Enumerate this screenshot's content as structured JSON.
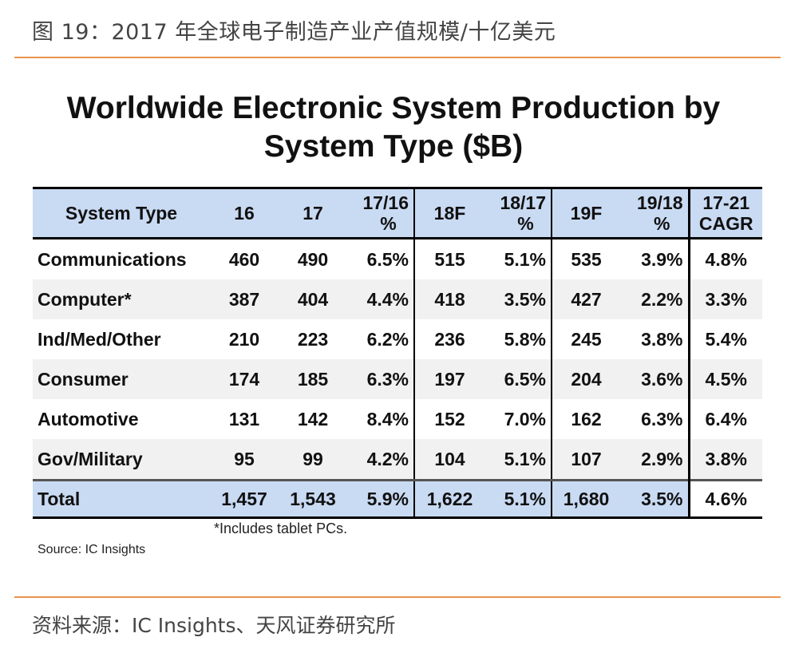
{
  "figure_caption": "图 19：2017 年全球电子制造产业产值规模/十亿美元",
  "title": {
    "line1": "Worldwide Electronic System Production by",
    "line2": "System Type ($B)"
  },
  "table": {
    "headers": {
      "system_type": "System Type",
      "y16": "16",
      "y17": "17",
      "g1716": [
        "17/16",
        "%"
      ],
      "y18": "18F",
      "g1817": [
        "18/17",
        "%"
      ],
      "y19": "19F",
      "g1918": [
        "19/18",
        "%"
      ],
      "cagr": [
        "17-21",
        "CAGR"
      ]
    },
    "rows": [
      {
        "type": "Communications",
        "y16": "460",
        "y17": "490",
        "g1716": "6.5%",
        "y18": "515",
        "g1817": "5.1%",
        "y19": "535",
        "g1918": "3.9%",
        "cagr": "4.8%"
      },
      {
        "type": "Computer*",
        "y16": "387",
        "y17": "404",
        "g1716": "4.4%",
        "y18": "418",
        "g1817": "3.5%",
        "y19": "427",
        "g1918": "2.2%",
        "cagr": "3.3%"
      },
      {
        "type": "Ind/Med/Other",
        "y16": "210",
        "y17": "223",
        "g1716": "6.2%",
        "y18": "236",
        "g1817": "5.8%",
        "y19": "245",
        "g1918": "3.8%",
        "cagr": "5.4%"
      },
      {
        "type": "Consumer",
        "y16": "174",
        "y17": "185",
        "g1716": "6.3%",
        "y18": "197",
        "g1817": "6.5%",
        "y19": "204",
        "g1918": "3.6%",
        "cagr": "4.5%"
      },
      {
        "type": "Automotive",
        "y16": "131",
        "y17": "142",
        "g1716": "8.4%",
        "y18": "152",
        "g1817": "7.0%",
        "y19": "162",
        "g1918": "6.3%",
        "cagr": "6.4%"
      },
      {
        "type": "Gov/Military",
        "y16": "95",
        "y17": "99",
        "g1716": "4.2%",
        "y18": "104",
        "g1817": "5.1%",
        "y19": "107",
        "g1918": "2.9%",
        "cagr": "3.8%"
      }
    ],
    "total": {
      "type": "Total",
      "y16": "1,457",
      "y17": "1,543",
      "g1716": "5.9%",
      "y18": "1,622",
      "g1817": "5.1%",
      "y19": "1,680",
      "g1918": "3.5%",
      "cagr": "4.6%"
    }
  },
  "footnote": "*Includes tablet PCs.",
  "source_inner": "Source: IC Insights",
  "source_outer": "资料来源：IC Insights、天风证券研究所",
  "colors": {
    "accent_rule": "#e9944a",
    "header_fill": "#c9daf3"
  }
}
